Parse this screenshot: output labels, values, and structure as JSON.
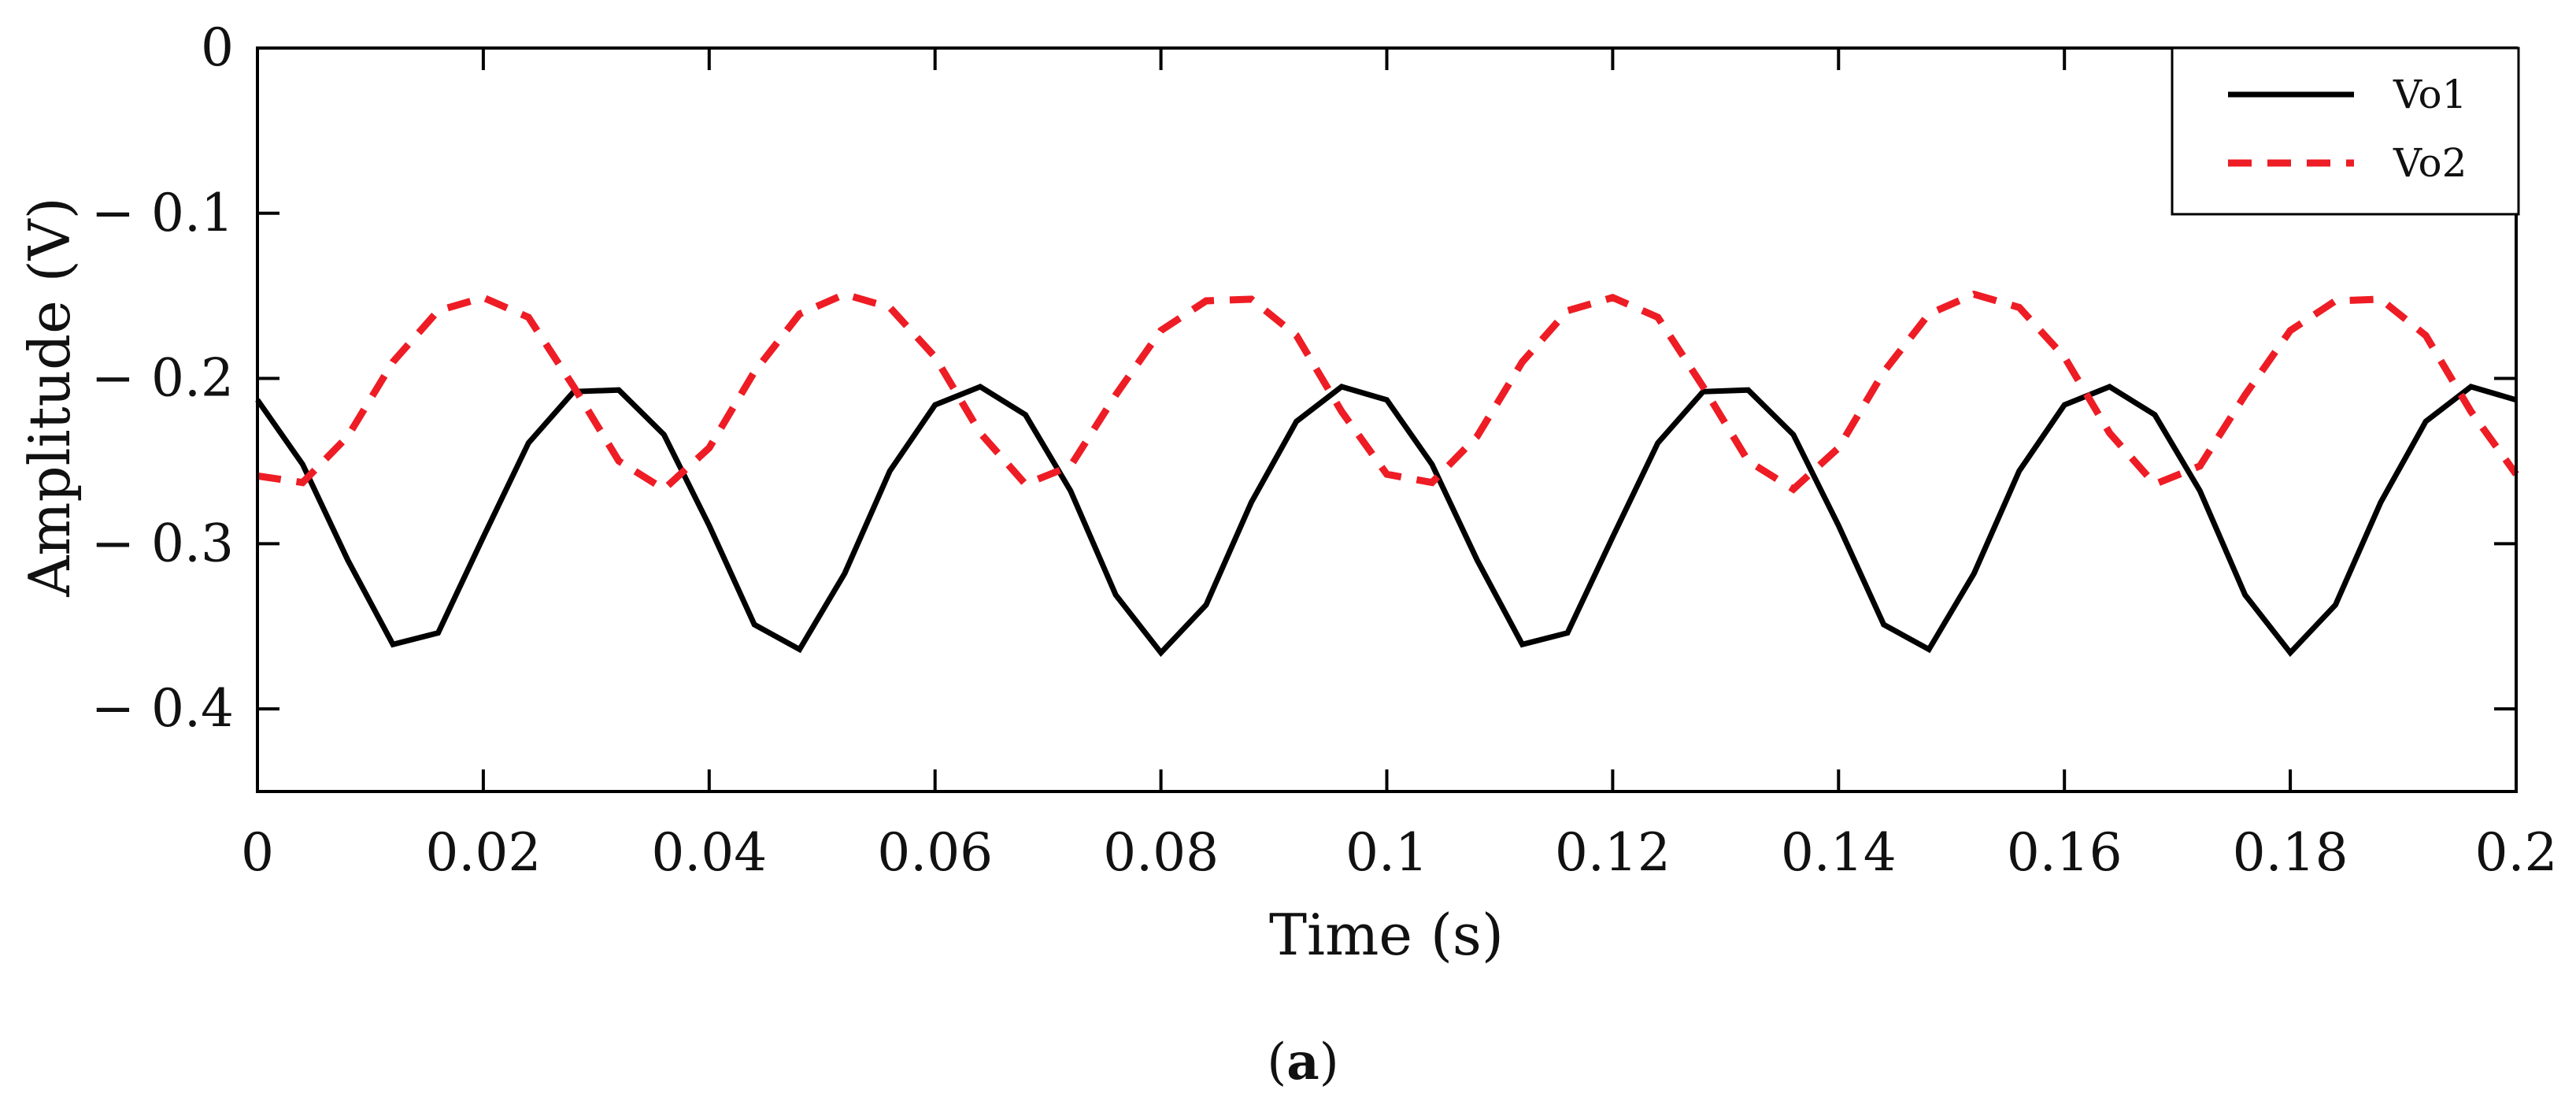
{
  "chart_data": {
    "type": "line",
    "title": "",
    "xlabel": "Time (s)",
    "ylabel": "Amplitude (V)",
    "xlim": [
      0,
      0.2
    ],
    "ylim": [
      -0.45,
      0
    ],
    "x_ticks": [
      0,
      0.02,
      0.04,
      0.06,
      0.08,
      0.1,
      0.12,
      0.14,
      0.16,
      0.18,
      0.2
    ],
    "x_tick_labels": [
      "0",
      "0.02",
      "0.04",
      "0.06",
      "0.08",
      "0.1",
      "0.12",
      "0.14",
      "0.16",
      "0.18",
      "0.2"
    ],
    "y_ticks": [
      0,
      -0.1,
      -0.2,
      -0.3,
      -0.4
    ],
    "y_tick_labels": [
      "0",
      "− 0.1",
      "− 0.2",
      "− 0.3",
      "− 0.4"
    ],
    "grid": false,
    "legend_position": "top-right",
    "series": [
      {
        "name": "Vo1",
        "color": "#000000",
        "style": "solid",
        "x": [
          0,
          0.004,
          0.008,
          0.012,
          0.016,
          0.02,
          0.024,
          0.028,
          0.032,
          0.036,
          0.04,
          0.044,
          0.048,
          0.052,
          0.056,
          0.06,
          0.064,
          0.068,
          0.072,
          0.076,
          0.08,
          0.084,
          0.088,
          0.092,
          0.096,
          0.1,
          0.104,
          0.108,
          0.112,
          0.116,
          0.12,
          0.124,
          0.128,
          0.132,
          0.136,
          0.14,
          0.144,
          0.148,
          0.152,
          0.156,
          0.16,
          0.164,
          0.168,
          0.172,
          0.176,
          0.18,
          0.184,
          0.188,
          0.192,
          0.196,
          0.2
        ],
        "y": [
          -0.213,
          -0.252,
          -0.31,
          -0.361,
          -0.354,
          -0.296,
          -0.239,
          -0.208,
          -0.207,
          -0.234,
          -0.289,
          -0.349,
          -0.364,
          -0.318,
          -0.256,
          -0.216,
          -0.205,
          -0.222,
          -0.268,
          -0.331,
          -0.366,
          -0.337,
          -0.275,
          -0.226,
          -0.205,
          -0.213,
          -0.252,
          -0.31,
          -0.361,
          -0.354,
          -0.296,
          -0.239,
          -0.208,
          -0.207,
          -0.234,
          -0.289,
          -0.349,
          -0.364,
          -0.318,
          -0.256,
          -0.216,
          -0.205,
          -0.222,
          -0.268,
          -0.331,
          -0.366,
          -0.337,
          -0.275,
          -0.226,
          -0.205,
          -0.213
        ]
      },
      {
        "name": "Vo2",
        "color": "#ee1c24",
        "style": "dashed",
        "x": [
          0,
          0.004,
          0.008,
          0.012,
          0.016,
          0.02,
          0.024,
          0.028,
          0.032,
          0.036,
          0.04,
          0.044,
          0.048,
          0.052,
          0.056,
          0.06,
          0.064,
          0.068,
          0.072,
          0.076,
          0.08,
          0.084,
          0.088,
          0.092,
          0.096,
          0.1,
          0.104,
          0.108,
          0.112,
          0.116,
          0.12,
          0.124,
          0.128,
          0.132,
          0.136,
          0.14,
          0.144,
          0.148,
          0.152,
          0.156,
          0.16,
          0.164,
          0.168,
          0.172,
          0.176,
          0.18,
          0.184,
          0.188,
          0.192,
          0.196,
          0.2
        ],
        "y": [
          -0.259,
          -0.263,
          -0.235,
          -0.19,
          -0.159,
          -0.151,
          -0.163,
          -0.205,
          -0.25,
          -0.267,
          -0.242,
          -0.196,
          -0.161,
          -0.149,
          -0.157,
          -0.187,
          -0.233,
          -0.264,
          -0.253,
          -0.21,
          -0.171,
          -0.153,
          -0.152,
          -0.174,
          -0.22,
          -0.258,
          -0.263,
          -0.235,
          -0.19,
          -0.159,
          -0.151,
          -0.163,
          -0.205,
          -0.25,
          -0.267,
          -0.242,
          -0.196,
          -0.161,
          -0.149,
          -0.157,
          -0.187,
          -0.233,
          -0.264,
          -0.253,
          -0.21,
          -0.171,
          -0.153,
          -0.152,
          -0.174,
          -0.22,
          -0.258
        ]
      }
    ]
  },
  "caption": {
    "open": "(",
    "bold": "a",
    "close": ")"
  }
}
